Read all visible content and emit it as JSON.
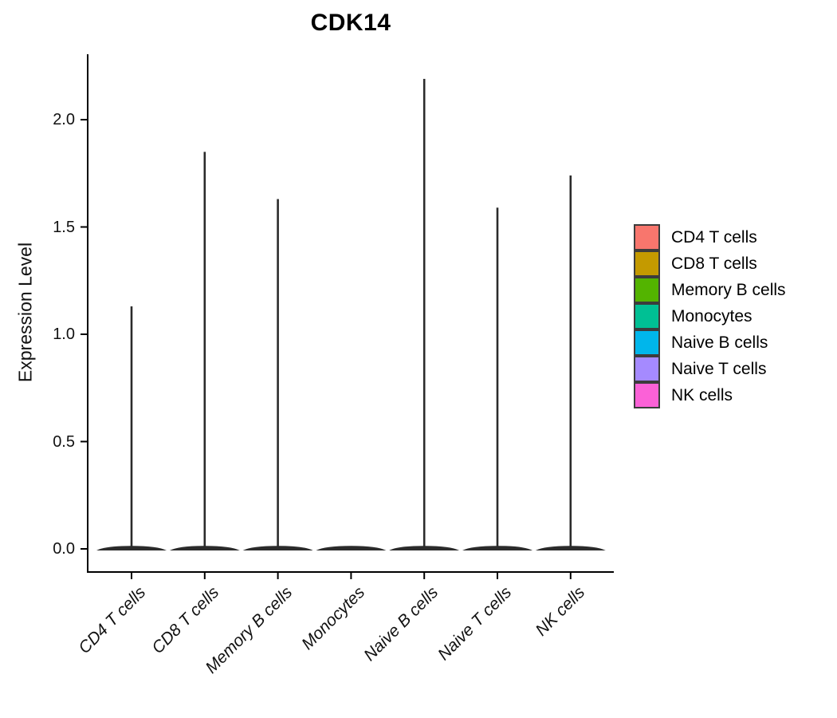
{
  "chart_data": {
    "type": "violin",
    "title": "CDK14",
    "ylabel": "Expression Level",
    "categories": [
      "CD4 T cells",
      "CD8 T cells",
      "Memory B cells",
      "Monocytes",
      "Naive B cells",
      "Naive T cells",
      "NK cells"
    ],
    "series": [
      {
        "name": "CD4 T cells",
        "color": "#F8766D",
        "max_expression": 1.13
      },
      {
        "name": "CD8 T cells",
        "color": "#C49A00",
        "max_expression": 1.85
      },
      {
        "name": "Memory B cells",
        "color": "#53B400",
        "max_expression": 1.63
      },
      {
        "name": "Monocytes",
        "color": "#00C094",
        "max_expression": 0.0
      },
      {
        "name": "Naive B cells",
        "color": "#00B6EB",
        "max_expression": 2.19
      },
      {
        "name": "Naive T cells",
        "color": "#A58AFF",
        "max_expression": 1.59
      },
      {
        "name": "NK cells",
        "color": "#FB61D7",
        "max_expression": 1.74
      }
    ],
    "y_tick_labels": [
      "0.0",
      "0.5",
      "1.0",
      "1.5",
      "2.0"
    ],
    "ylim": [
      0,
      2.25
    ],
    "grid": false,
    "legend_position": "right",
    "violin_outline_color": "#2b2b2b",
    "axis_color": "#000000"
  }
}
